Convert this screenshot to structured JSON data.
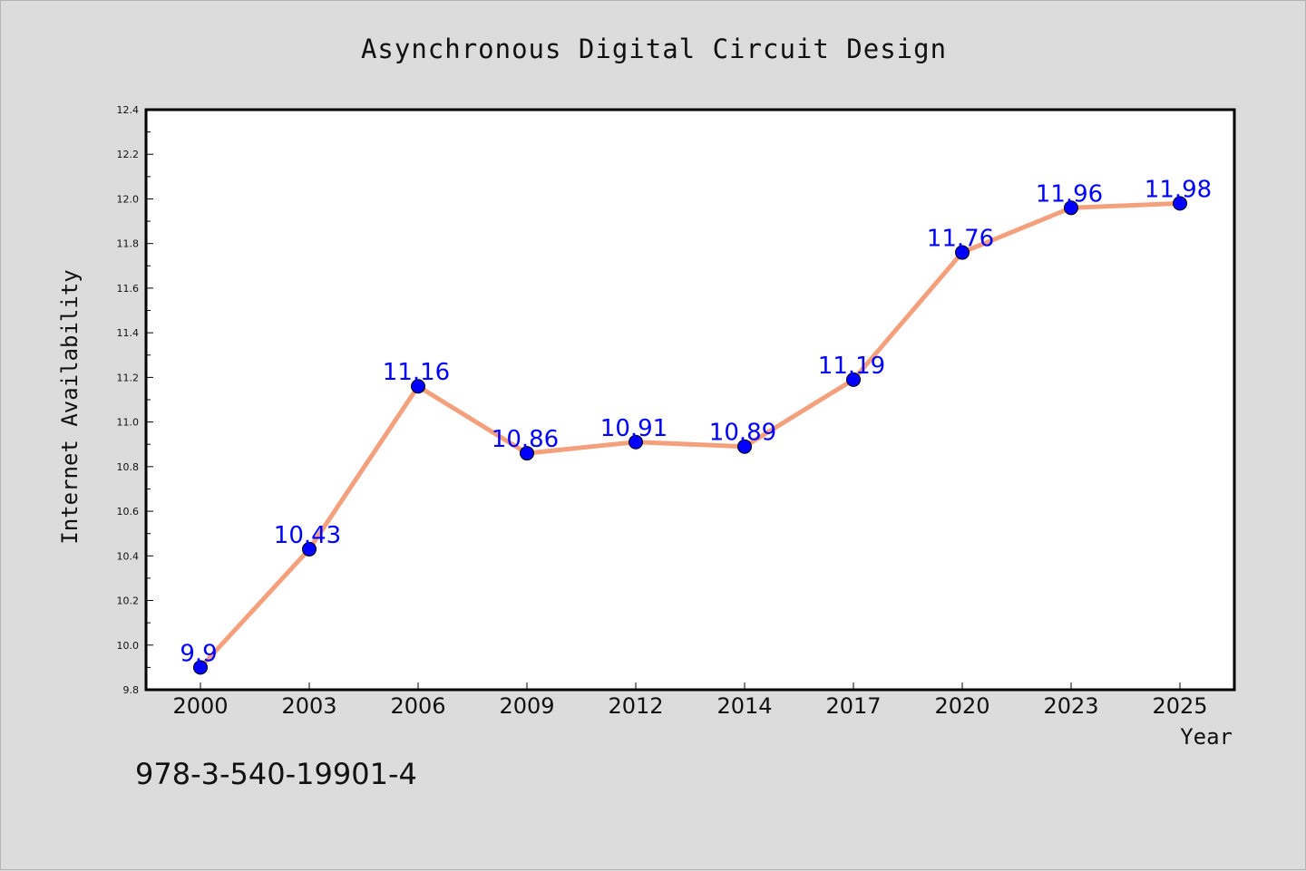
{
  "chart_data": {
    "type": "line",
    "title": "Asynchronous Digital Circuit Design",
    "xlabel": "Year",
    "ylabel": "Internet Availability",
    "categories": [
      "2000",
      "2003",
      "2006",
      "2009",
      "2012",
      "2014",
      "2017",
      "2020",
      "2023",
      "2025"
    ],
    "series": [
      {
        "values": [
          9.9,
          10.43,
          11.16,
          10.86,
          10.91,
          10.89,
          11.19,
          11.76,
          11.96,
          11.98
        ],
        "data_labels": [
          "9.9",
          "10.43",
          "11.16",
          "10.86",
          "10.91",
          "10.89",
          "11.19",
          "11.76",
          "11.96",
          "11.98"
        ],
        "line_color": "#f4a07c",
        "marker_color": "#0000ff"
      }
    ],
    "ylim": [
      9.8,
      12.4
    ],
    "yticks": [
      "9.8",
      "10.0",
      "10.2",
      "10.4",
      "10.6",
      "10.8",
      "11.0",
      "11.2",
      "11.4",
      "11.6",
      "11.8",
      "12.0",
      "12.2",
      "12.4"
    ],
    "grid": false,
    "legend": "none"
  },
  "footer": {
    "isbn": "978-3-540-19901-4"
  },
  "colors": {
    "background": "#dcdcdc",
    "plot_background": "#ffffff",
    "line": "#f4a07c",
    "marker": "#0000ff",
    "data_label": "#0000ff"
  }
}
